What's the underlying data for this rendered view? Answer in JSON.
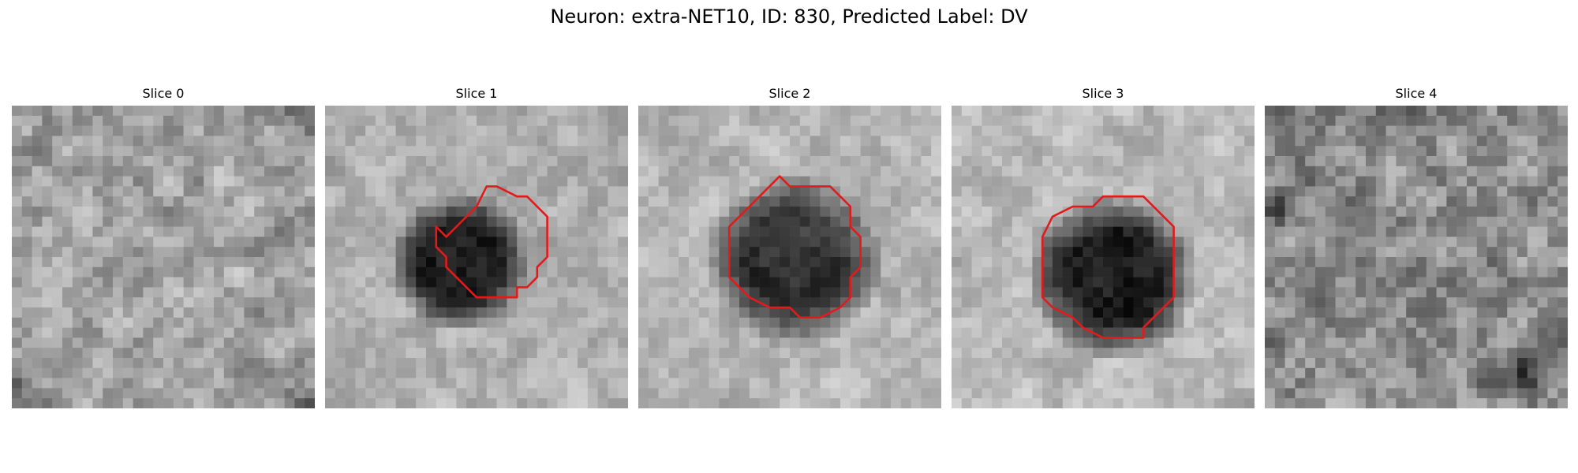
{
  "figure": {
    "title": "Neuron: extra-NET10, ID: 830, Predicted Label: DV"
  },
  "panels": [
    {
      "title": "Slice 0",
      "has_contour": false
    },
    {
      "title": "Slice 1",
      "has_contour": true
    },
    {
      "title": "Slice 2",
      "has_contour": true
    },
    {
      "title": "Slice 3",
      "has_contour": true
    },
    {
      "title": "Slice 4",
      "has_contour": false
    }
  ],
  "colors": {
    "contour": "#e31a1c",
    "colormap": "grayscale"
  }
}
